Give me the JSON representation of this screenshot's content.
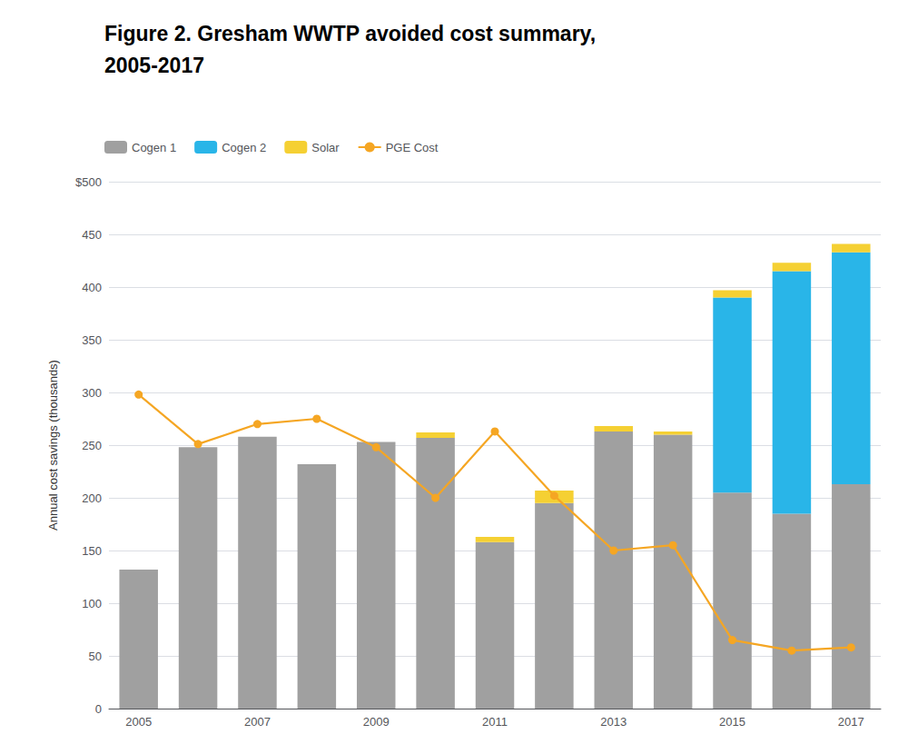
{
  "chart_data": {
    "type": "bar",
    "title": "Figure 2. Gresham WWTP avoided cost summary,",
    "subtitle": "2005-2017",
    "ylabel": "Annual cost savings (thousands)",
    "categories": [
      "2005",
      null,
      "2007",
      null,
      "2009",
      null,
      "2011",
      null,
      "2013",
      null,
      "2015",
      null,
      "2017"
    ],
    "series": [
      {
        "name": "Cogen 1",
        "type": "bar",
        "color": "#a0a0a0",
        "values": [
          132,
          248,
          258,
          232,
          253,
          257,
          158,
          195,
          263,
          260,
          205,
          185,
          213
        ]
      },
      {
        "name": "Cogen 2",
        "type": "bar",
        "color": "#29b5e8",
        "values": [
          0,
          0,
          0,
          0,
          0,
          0,
          0,
          0,
          0,
          0,
          185,
          230,
          220
        ]
      },
      {
        "name": "Solar",
        "type": "bar",
        "color": "#f5d033",
        "values": [
          0,
          0,
          0,
          0,
          0,
          5,
          5,
          12,
          5,
          3,
          7,
          8,
          8
        ]
      },
      {
        "name": "PGE Cost",
        "type": "line",
        "marker": "circle",
        "color": "#f5a623",
        "values": [
          298,
          251,
          270,
          275,
          248,
          200,
          263,
          202,
          150,
          155,
          65,
          55,
          58
        ]
      }
    ],
    "stacked": true,
    "ylim": [
      0,
      500
    ],
    "yticks": [
      0,
      50,
      100,
      150,
      200,
      250,
      300,
      350,
      400,
      450,
      {
        "value": 500,
        "label": "$500"
      }
    ],
    "grid": true,
    "legend": "upper left"
  }
}
